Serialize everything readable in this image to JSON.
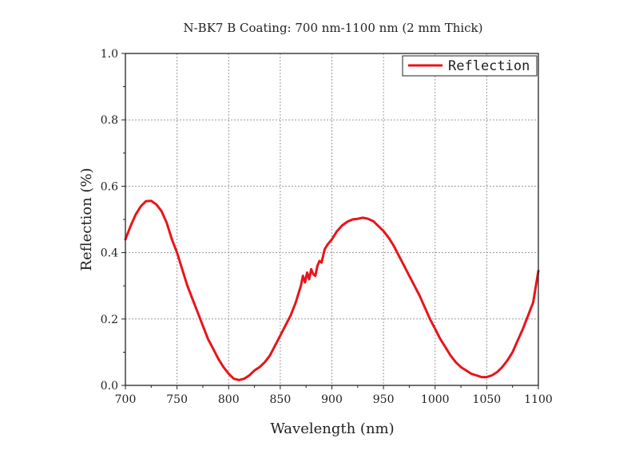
{
  "chart_data": {
    "type": "line",
    "title": "N-BK7 B Coating: 700 nm-1100 nm (2 mm Thick)",
    "xlabel": "Wavelength (nm)",
    "ylabel": "Reflection (%)",
    "xlim": [
      700,
      1100
    ],
    "ylim": [
      0.0,
      1.0
    ],
    "xticks": [
      700,
      750,
      800,
      850,
      900,
      950,
      1000,
      1050,
      1100
    ],
    "xtick_labels": [
      "700",
      "750",
      "800",
      "850",
      "900",
      "950",
      "1000",
      "1050",
      "1100"
    ],
    "yticks": [
      0.0,
      0.2,
      0.4,
      0.6,
      0.8,
      1.0
    ],
    "ytick_labels": [
      "0.0",
      "0.2",
      "0.4",
      "0.6",
      "0.8",
      "1.0"
    ],
    "grid": true,
    "legend_position": "top-right",
    "series": [
      {
        "name": "Reflection",
        "color": "#e8141a",
        "x": [
          700,
          705,
          710,
          715,
          720,
          725,
          730,
          735,
          740,
          745,
          750,
          755,
          760,
          765,
          770,
          775,
          780,
          785,
          790,
          795,
          800,
          805,
          810,
          815,
          820,
          825,
          830,
          835,
          840,
          845,
          850,
          855,
          860,
          865,
          868,
          870,
          872,
          874,
          876,
          878,
          880,
          882,
          884,
          886,
          888,
          890,
          893,
          896,
          900,
          905,
          910,
          915,
          920,
          925,
          930,
          935,
          940,
          945,
          950,
          955,
          960,
          965,
          970,
          975,
          980,
          985,
          990,
          995,
          1000,
          1005,
          1010,
          1015,
          1020,
          1025,
          1030,
          1035,
          1040,
          1045,
          1050,
          1055,
          1060,
          1065,
          1070,
          1075,
          1080,
          1085,
          1090,
          1095,
          1100
        ],
        "y": [
          0.44,
          0.48,
          0.515,
          0.54,
          0.555,
          0.556,
          0.545,
          0.525,
          0.49,
          0.44,
          0.4,
          0.35,
          0.3,
          0.26,
          0.22,
          0.18,
          0.14,
          0.11,
          0.08,
          0.055,
          0.035,
          0.02,
          0.016,
          0.02,
          0.03,
          0.045,
          0.055,
          0.07,
          0.09,
          0.12,
          0.15,
          0.18,
          0.21,
          0.25,
          0.28,
          0.3,
          0.33,
          0.31,
          0.34,
          0.32,
          0.35,
          0.335,
          0.33,
          0.36,
          0.375,
          0.37,
          0.41,
          0.425,
          0.44,
          0.465,
          0.482,
          0.493,
          0.5,
          0.502,
          0.505,
          0.502,
          0.495,
          0.48,
          0.465,
          0.445,
          0.42,
          0.39,
          0.36,
          0.33,
          0.3,
          0.27,
          0.235,
          0.2,
          0.17,
          0.14,
          0.115,
          0.09,
          0.07,
          0.055,
          0.045,
          0.035,
          0.03,
          0.025,
          0.025,
          0.03,
          0.04,
          0.055,
          0.075,
          0.1,
          0.135,
          0.17,
          0.21,
          0.25,
          0.345
        ]
      }
    ]
  }
}
